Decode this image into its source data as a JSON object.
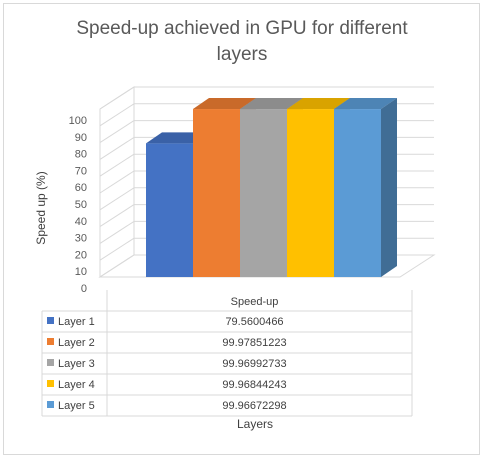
{
  "chart_data": {
    "type": "bar",
    "style": "3d-clustered-column-with-data-table",
    "title_lines": [
      "Speed-up achieved in GPU for different",
      "layers"
    ],
    "ylabel": "Speed up (%)",
    "xlabel": "Layers",
    "ylim": [
      0,
      100
    ],
    "yticks": [
      0,
      10,
      20,
      30,
      40,
      50,
      60,
      70,
      80,
      90,
      100
    ],
    "grid": true,
    "categories": [
      "Speed-up"
    ],
    "series": [
      {
        "name": "Layer 1",
        "value": 79.5600466,
        "label": "79.5600466",
        "color": "#4472c4"
      },
      {
        "name": "Layer 2",
        "value": 99.97851223,
        "label": "99.97851223",
        "color": "#ed7d31"
      },
      {
        "name": "Layer 3",
        "value": 99.96992733,
        "label": "99.96992733",
        "color": "#a5a5a5"
      },
      {
        "name": "Layer 4",
        "value": 99.96844243,
        "label": "99.96844243",
        "color": "#ffc000"
      },
      {
        "name": "Layer 5",
        "value": 99.96672298,
        "label": "99.96672298",
        "color": "#5b9bd5"
      }
    ]
  }
}
